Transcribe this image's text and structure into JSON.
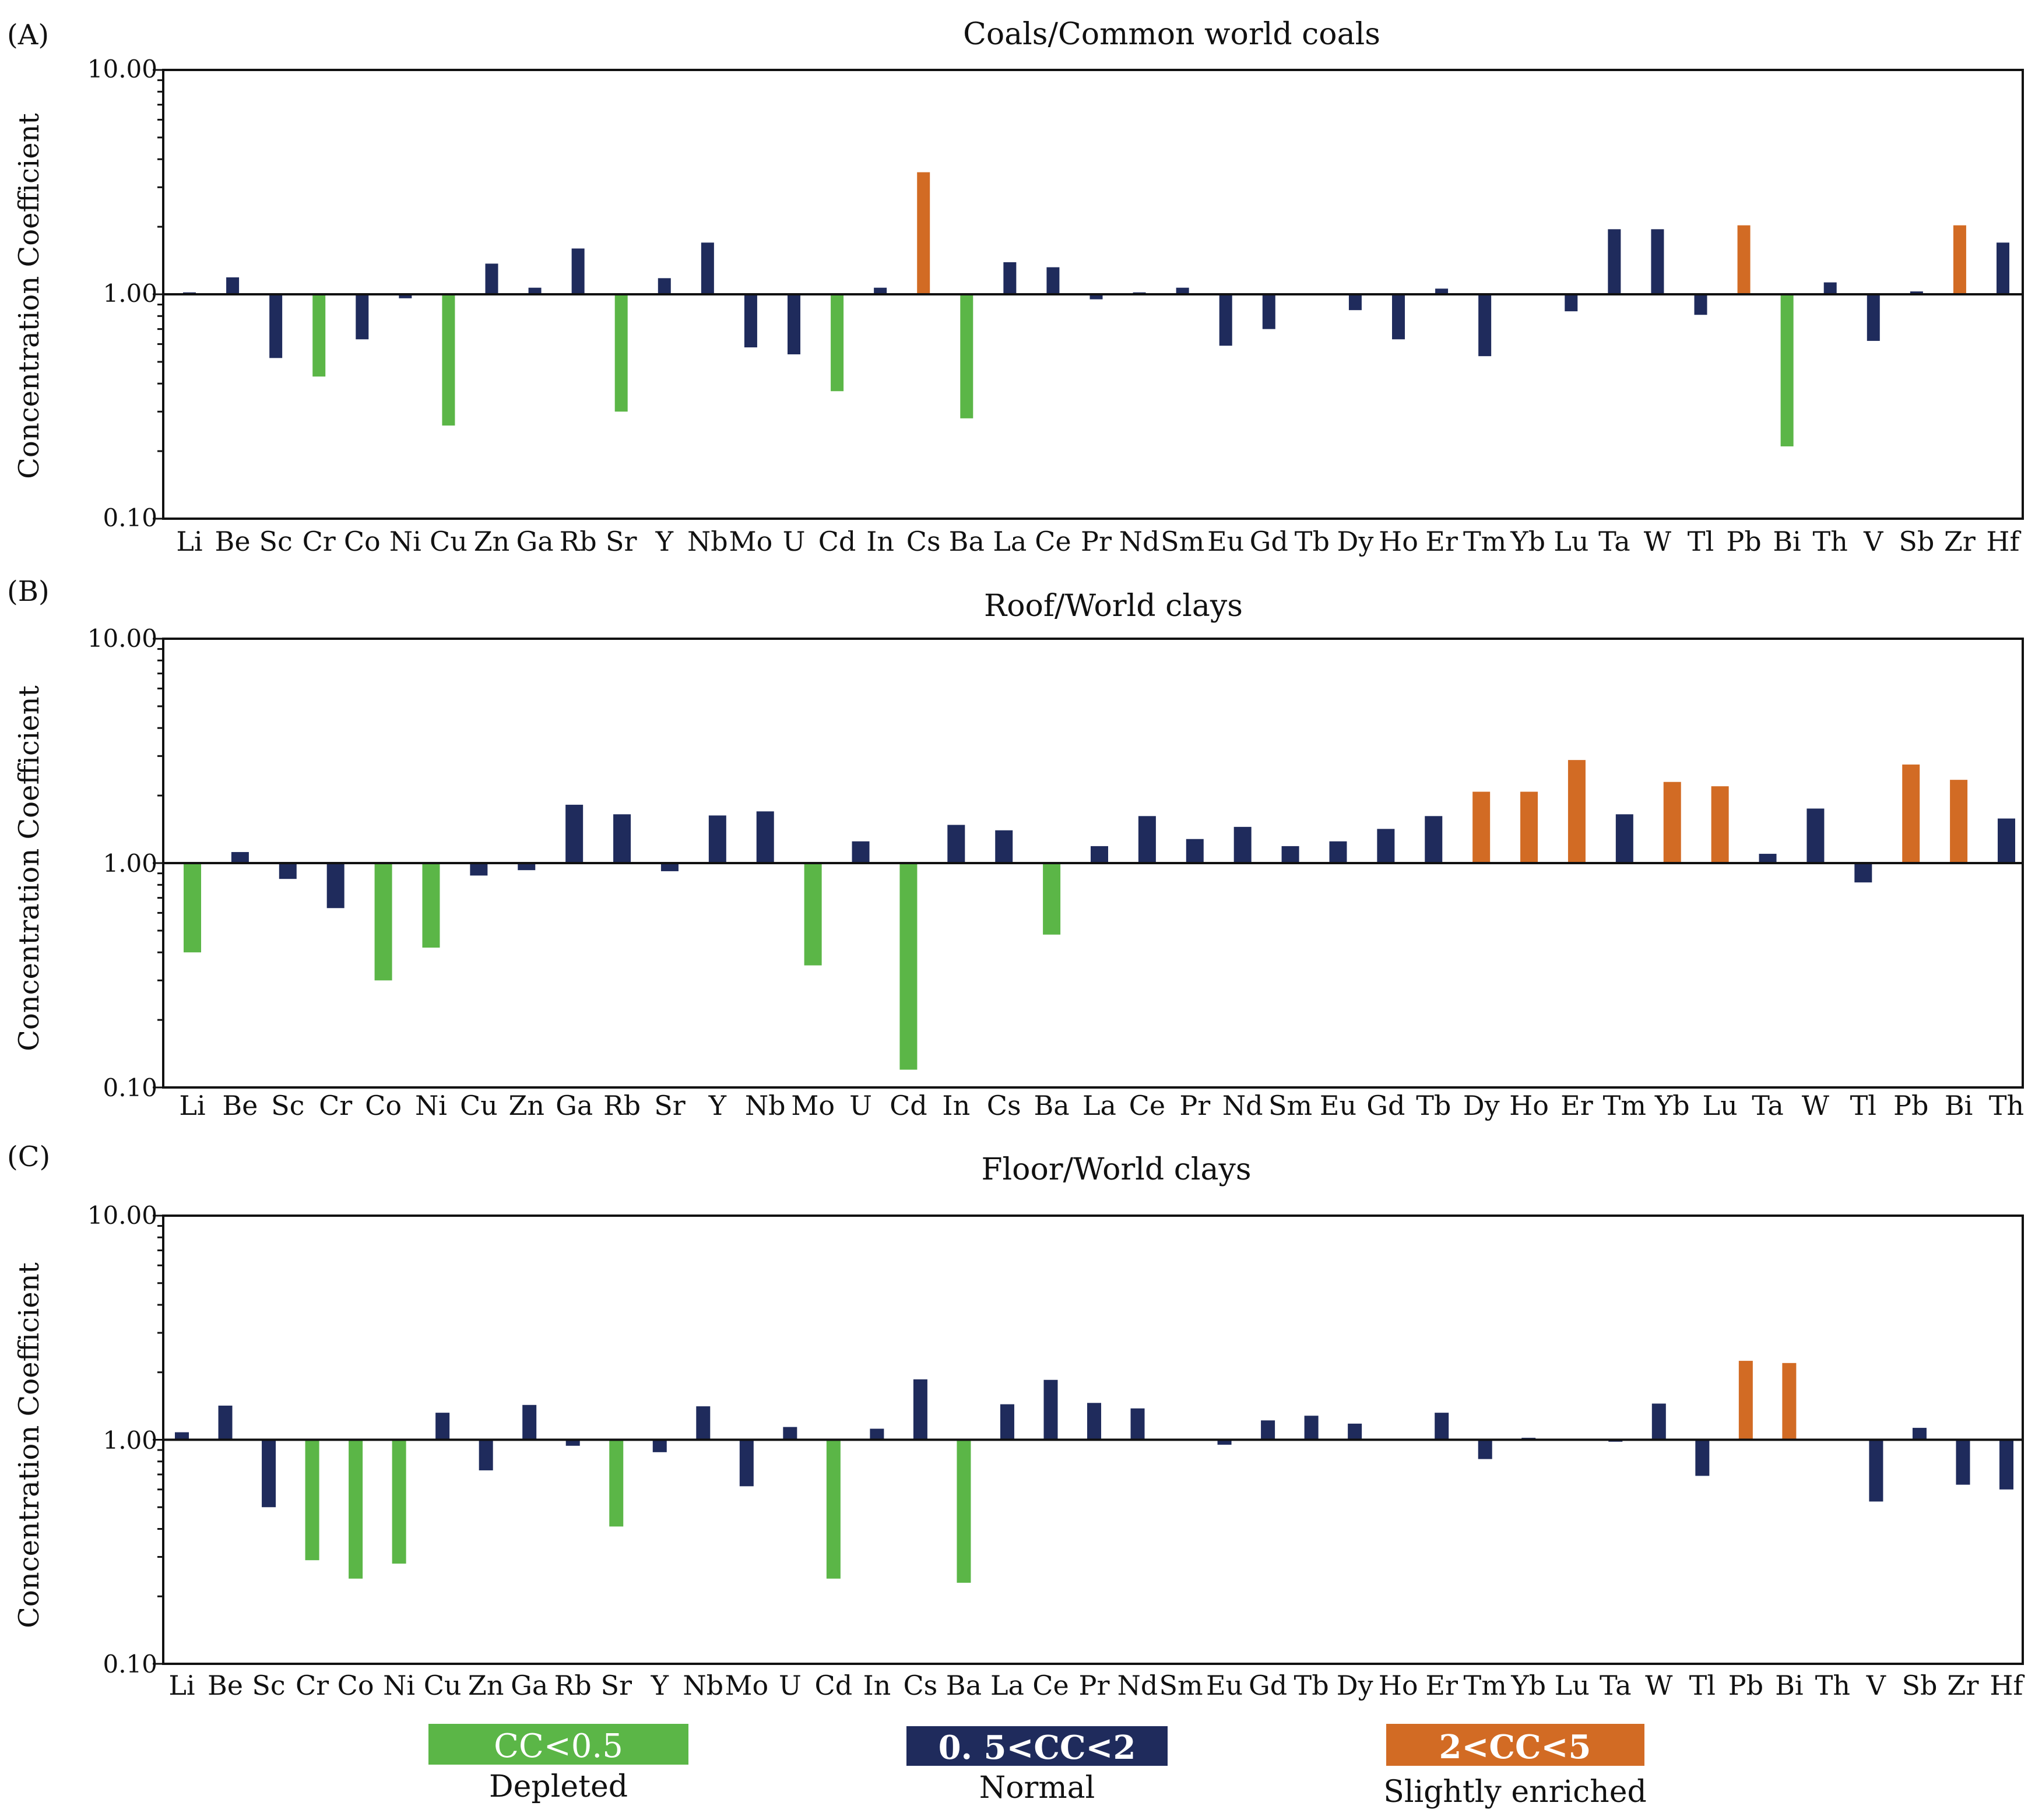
{
  "colors": {
    "depleted": "#5bb647",
    "normal": "#1f2b5c",
    "enriched": "#d26b24",
    "axis": "#111111",
    "background": "#ffffff"
  },
  "y_label": "Concentration  Coefficient",
  "chart_data": [
    {
      "id": "A",
      "panel_label": "(A)",
      "type": "bar",
      "title": "Coals/Common world coals",
      "xlabel": "",
      "ylabel": "Concentration  Coefficient",
      "yscale": "log",
      "ylim": [
        0.1,
        10
      ],
      "baseline": 1,
      "yticks": [
        "10.00",
        "1.00",
        "0.10"
      ],
      "categories": [
        "Li",
        "Be",
        "Sc",
        "Cr",
        "Co",
        "Ni",
        "Cu",
        "Zn",
        "Ga",
        "Rb",
        "Sr",
        "Y",
        "Nb",
        "Mo",
        "U",
        "Cd",
        "In",
        "Cs",
        "Ba",
        "La",
        "Ce",
        "Pr",
        "Nd",
        "Sm",
        "Eu",
        "Gd",
        "Tb",
        "Dy",
        "Ho",
        "Er",
        "Tm",
        "Yb",
        "Lu",
        "Ta",
        "W",
        "Tl",
        "Pb",
        "Bi",
        "Th",
        "V",
        "Sb",
        "Zr",
        "Hf"
      ],
      "values": [
        1.02,
        1.19,
        0.52,
        0.43,
        0.63,
        0.96,
        0.26,
        1.37,
        1.07,
        1.6,
        0.3,
        1.18,
        1.7,
        0.58,
        0.54,
        0.37,
        1.07,
        3.5,
        0.28,
        1.39,
        1.32,
        0.95,
        1.02,
        1.07,
        0.59,
        0.7,
        1.0,
        0.85,
        0.63,
        1.06,
        0.53,
        1.01,
        0.84,
        1.95,
        1.95,
        0.81,
        2.03,
        0.21,
        1.13,
        0.62,
        1.03,
        2.03,
        1.7
      ]
    },
    {
      "id": "B",
      "panel_label": "(B)",
      "type": "bar",
      "title": "Roof/World clays",
      "xlabel": "",
      "ylabel": "Concentration  Coefficient",
      "yscale": "log",
      "ylim": [
        0.1,
        10
      ],
      "baseline": 1,
      "yticks": [
        "10.00",
        "1.00",
        "0.10"
      ],
      "categories": [
        "Li",
        "Be",
        "Sc",
        "Cr",
        "Co",
        "Ni",
        "Cu",
        "Zn",
        "Ga",
        "Rb",
        "Sr",
        "Y",
        "Nb",
        "Mo",
        "U",
        "Cd",
        "In",
        "Cs",
        "Ba",
        "La",
        "Ce",
        "Pr",
        "Nd",
        "Sm",
        "Eu",
        "Gd",
        "Tb",
        "Dy",
        "Ho",
        "Er",
        "Tm",
        "Yb",
        "Lu",
        "Ta",
        "W",
        "Tl",
        "Pb",
        "Bi",
        "Th"
      ],
      "values": [
        0.4,
        1.12,
        0.85,
        0.63,
        0.3,
        0.42,
        0.88,
        0.93,
        1.82,
        1.65,
        0.92,
        1.63,
        1.7,
        0.35,
        1.25,
        0.12,
        1.48,
        1.4,
        0.48,
        1.19,
        1.62,
        1.28,
        1.45,
        1.19,
        1.25,
        1.42,
        1.62,
        2.08,
        2.08,
        2.88,
        1.65,
        2.3,
        2.2,
        1.1,
        1.75,
        0.82,
        2.75,
        2.35,
        1.58
      ]
    },
    {
      "id": "C",
      "panel_label": "(C)",
      "type": "bar",
      "title": "Floor/World clays",
      "xlabel": "",
      "ylabel": "Concentration  Coefficient",
      "yscale": "log",
      "ylim": [
        0.1,
        10
      ],
      "baseline": 1,
      "yticks": [
        "10.00",
        "1.00",
        "0.10"
      ],
      "categories": [
        "Li",
        "Be",
        "Sc",
        "Cr",
        "Co",
        "Ni",
        "Cu",
        "Zn",
        "Ga",
        "Rb",
        "Sr",
        "Y",
        "Nb",
        "Mo",
        "U",
        "Cd",
        "In",
        "Cs",
        "Ba",
        "La",
        "Ce",
        "Pr",
        "Nd",
        "Sm",
        "Eu",
        "Gd",
        "Tb",
        "Dy",
        "Ho",
        "Er",
        "Tm",
        "Yb",
        "Lu",
        "Ta",
        "W",
        "Tl",
        "Pb",
        "Bi",
        "Th",
        "V",
        "Sb",
        "Zr",
        "Hf"
      ],
      "values": [
        1.08,
        1.42,
        0.5,
        0.29,
        0.24,
        0.28,
        1.32,
        0.73,
        1.43,
        0.94,
        0.41,
        0.88,
        1.41,
        0.62,
        1.14,
        0.24,
        1.12,
        1.86,
        0.23,
        1.44,
        1.85,
        1.46,
        1.38,
        0.99,
        0.95,
        1.22,
        1.28,
        1.18,
        0.99,
        1.32,
        0.82,
        1.02,
        1.0,
        0.98,
        1.45,
        0.69,
        2.25,
        2.2,
        1.0,
        0.53,
        1.13,
        0.63,
        0.6
      ]
    }
  ],
  "legend": [
    {
      "box_text": "CC<0.5",
      "caption": "Depleted",
      "color_key": "depleted"
    },
    {
      "box_text": "0. 5<CC<2",
      "caption": "Normal",
      "color_key": "normal"
    },
    {
      "box_text": "2<CC<5",
      "caption": "Slightly enriched",
      "color_key": "enriched"
    }
  ]
}
